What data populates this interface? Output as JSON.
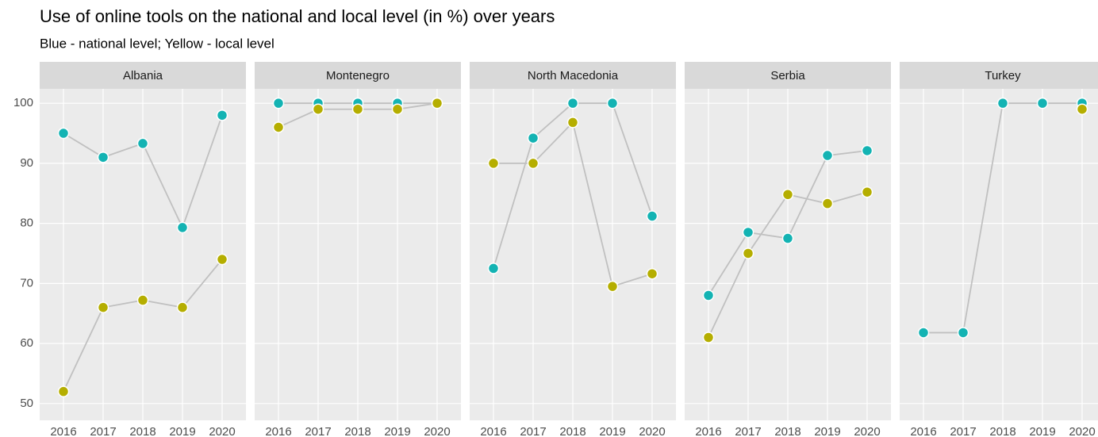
{
  "title": "Use of online tools on the national and local level (in %) over years",
  "subtitle": "Blue - national level; Yellow - local level",
  "chart_data": [
    {
      "type": "line",
      "title": "Albania",
      "categories": [
        "2016",
        "2017",
        "2018",
        "2019",
        "2020"
      ],
      "ylim": [
        47.2,
        102.4
      ],
      "yticks": [
        50,
        60,
        70,
        80,
        90,
        100
      ],
      "grid": true,
      "series": [
        {
          "color": "#13b3b3",
          "values": [
            95,
            91,
            93.3,
            79.3,
            98
          ]
        },
        {
          "color": "#b5ae00",
          "values": [
            52,
            66,
            67.2,
            66,
            74
          ]
        }
      ]
    },
    {
      "type": "line",
      "title": "Montenegro",
      "categories": [
        "2016",
        "2017",
        "2018",
        "2019",
        "2020"
      ],
      "ylim": [
        47.2,
        102.4
      ],
      "yticks": [
        50,
        60,
        70,
        80,
        90,
        100
      ],
      "grid": true,
      "series": [
        {
          "color": "#13b3b3",
          "values": [
            100,
            100,
            100,
            100,
            100
          ]
        },
        {
          "color": "#b5ae00",
          "values": [
            96,
            99,
            99,
            99,
            100
          ]
        }
      ]
    },
    {
      "type": "line",
      "title": "North Macedonia",
      "categories": [
        "2016",
        "2017",
        "2018",
        "2019",
        "2020"
      ],
      "ylim": [
        47.2,
        102.4
      ],
      "yticks": [
        50,
        60,
        70,
        80,
        90,
        100
      ],
      "grid": true,
      "series": [
        {
          "color": "#13b3b3",
          "values": [
            72.5,
            94.2,
            100,
            100,
            81.2
          ]
        },
        {
          "color": "#b5ae00",
          "values": [
            90,
            90,
            96.8,
            69.5,
            71.6
          ]
        }
      ]
    },
    {
      "type": "line",
      "title": "Serbia",
      "categories": [
        "2016",
        "2017",
        "2018",
        "2019",
        "2020"
      ],
      "ylim": [
        47.2,
        102.4
      ],
      "yticks": [
        50,
        60,
        70,
        80,
        90,
        100
      ],
      "grid": true,
      "series": [
        {
          "color": "#13b3b3",
          "values": [
            68,
            78.5,
            77.5,
            91.3,
            92.1
          ]
        },
        {
          "color": "#b5ae00",
          "values": [
            61,
            75,
            84.8,
            83.3,
            85.2
          ]
        }
      ]
    },
    {
      "type": "line",
      "title": "Turkey",
      "categories": [
        "2016",
        "2017",
        "2018",
        "2019",
        "2020"
      ],
      "ylim": [
        47.2,
        102.4
      ],
      "yticks": [
        50,
        60,
        70,
        80,
        90,
        100
      ],
      "grid": true,
      "series": [
        {
          "color": "#13b3b3",
          "values": [
            61.8,
            61.8,
            100,
            100,
            100
          ]
        },
        {
          "color": "#b5ae00",
          "values": [
            null,
            null,
            null,
            null,
            99
          ]
        }
      ]
    }
  ]
}
